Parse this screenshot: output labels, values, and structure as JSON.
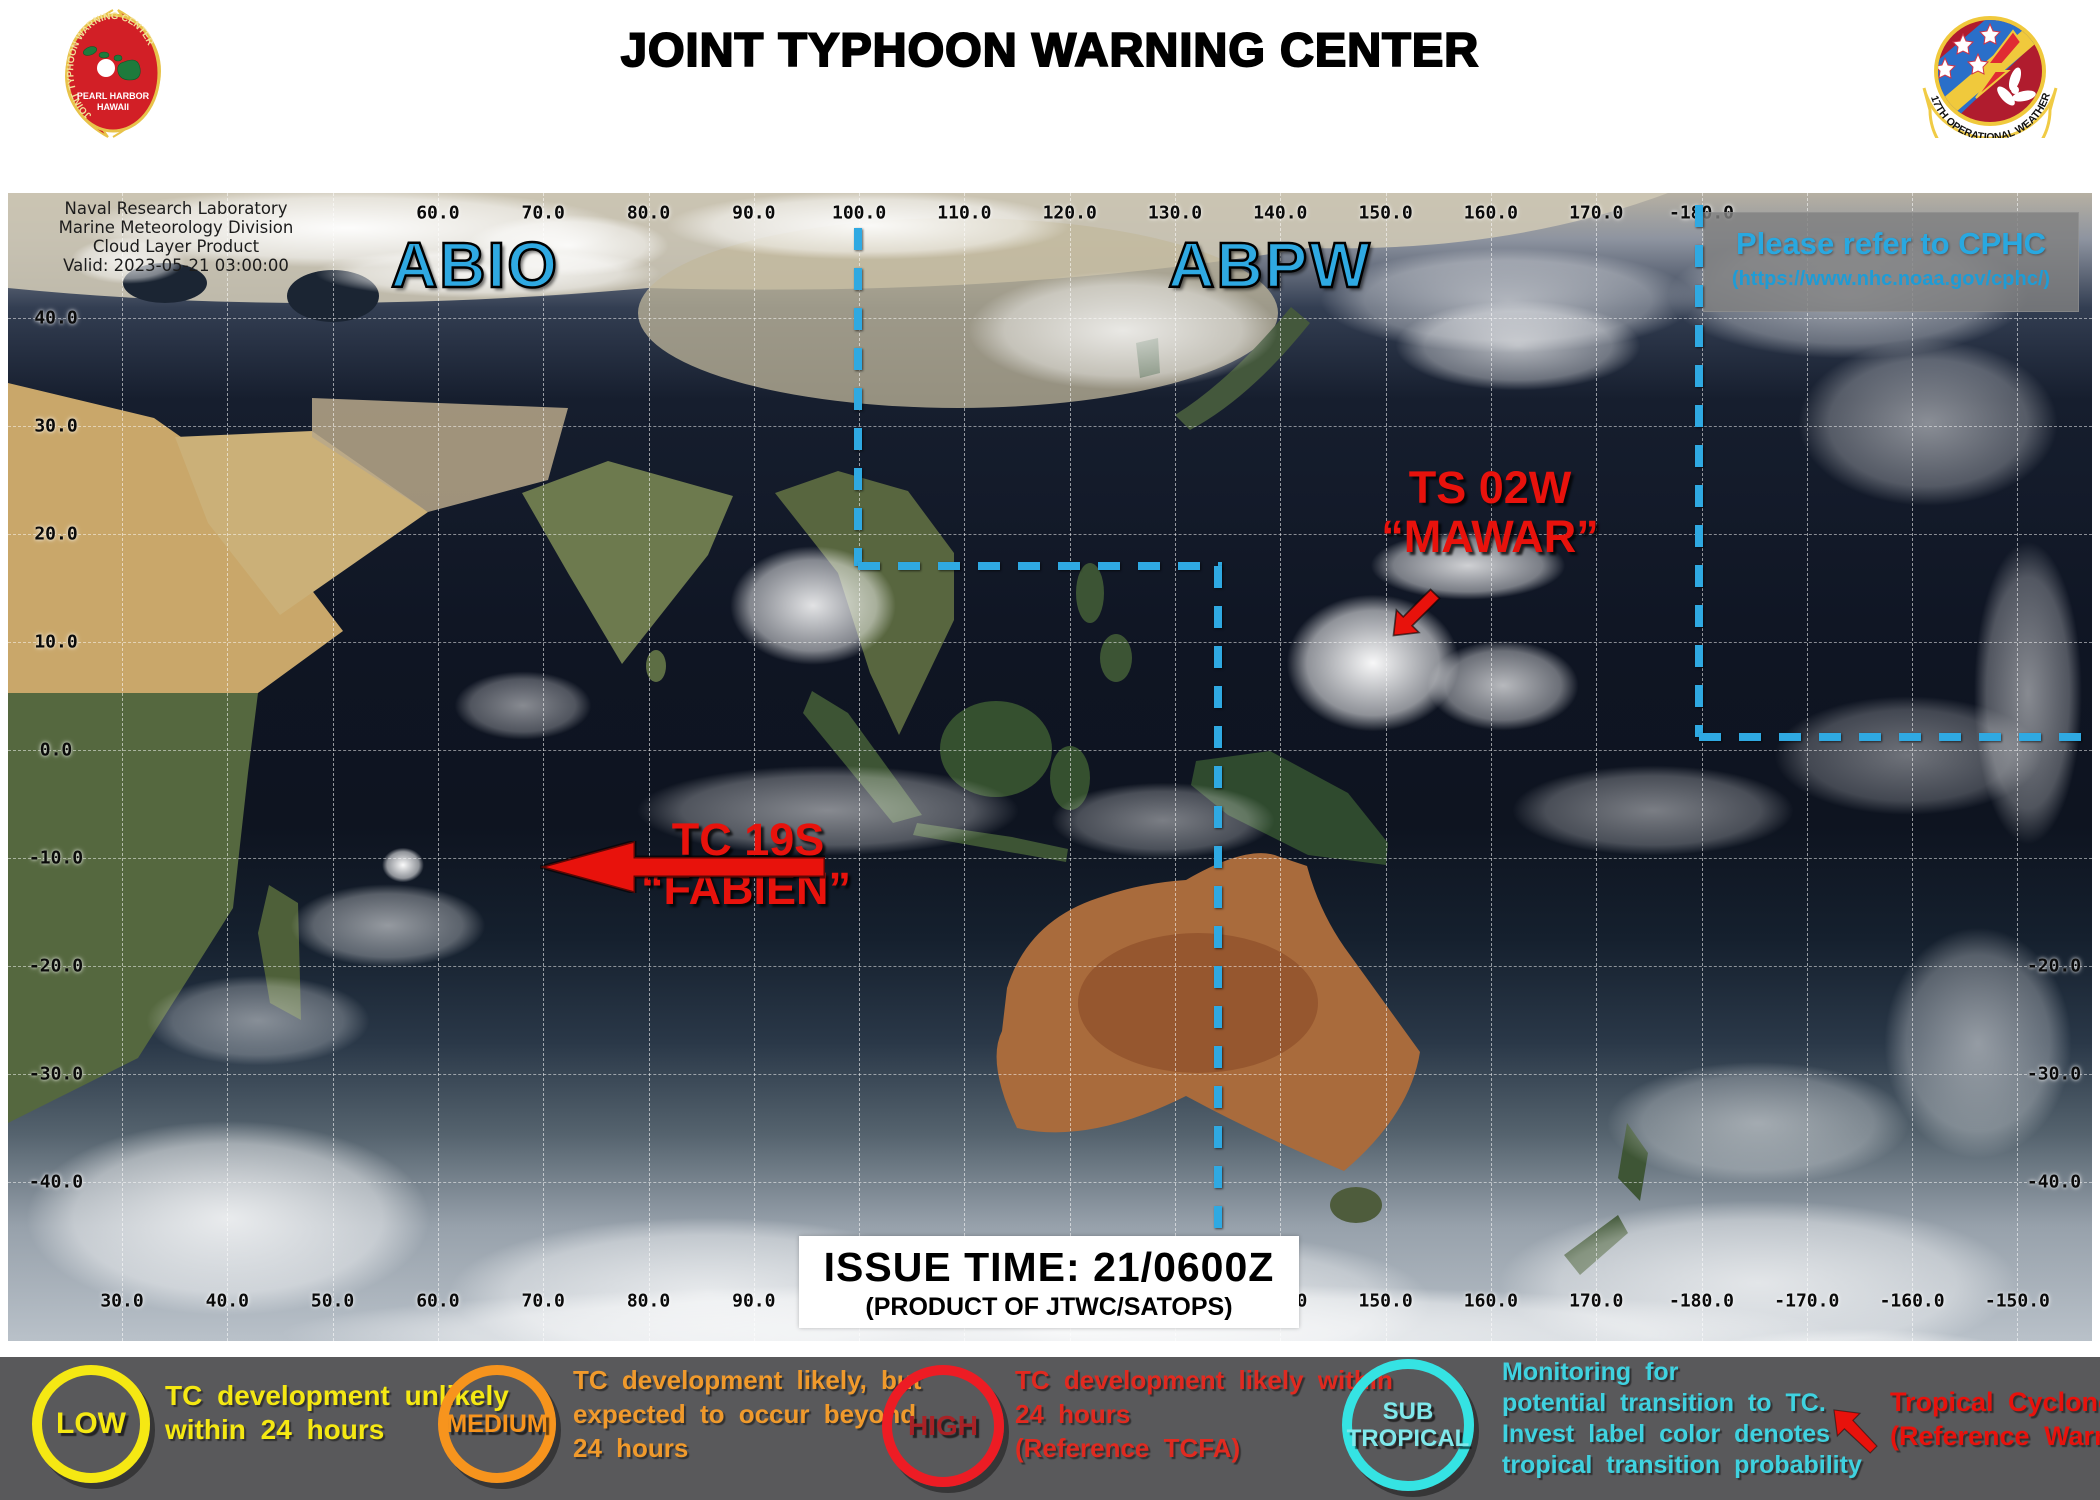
{
  "header": {
    "title": "JOINT TYPHOON WARNING CENTER",
    "left_logo": {
      "ring_text": "JOINT TYPHOON WARNING CENTER",
      "line1": "PEARL HARBOR",
      "line2": "HAWAII"
    },
    "right_logo": {
      "ribbon_text": "17TH OPERATIONAL WEATHER SQ"
    }
  },
  "map": {
    "info_block": {
      "line1": "Naval Research Laboratory",
      "line2": "Marine Meteorology Division",
      "line3": "Cloud Layer Product",
      "line4": "Valid: 2023-05-21 03:00:00"
    },
    "region_labels": {
      "left": "ABIO",
      "right": "ABPW"
    },
    "cphc_notice": {
      "line1": "Please refer to CPHC",
      "line2": "(https://www.nhc.noaa.gov/cphc/)"
    },
    "axes": {
      "lon_values": [
        "30.0",
        "40.0",
        "50.0",
        "60.0",
        "70.0",
        "80.0",
        "90.0",
        "100.0",
        "110.0",
        "120.0",
        "130.0",
        "140.0",
        "150.0",
        "160.0",
        "170.0",
        "-180.0",
        "-170.0",
        "-160.0",
        "-150.0"
      ],
      "top_visible_from": 3,
      "top_visible_to": 15,
      "lat_left": [
        "40.0",
        "30.0",
        "20.0",
        "10.0",
        "0.0",
        "-10.0",
        "-20.0",
        "-30.0",
        "-40.0"
      ],
      "lat_right": [
        "-20.0",
        "-30.0",
        "-40.0"
      ]
    },
    "storms": [
      {
        "id": "TS 02W",
        "name": "“MAWAR”"
      },
      {
        "id": "TC 19S",
        "name": "“FABIEN”"
      }
    ],
    "issue_box": {
      "line1": "ISSUE TIME: 21/0600Z",
      "line2": "(PRODUCT OF JTWC/SATOPS)"
    }
  },
  "legend": {
    "items": [
      {
        "badge": "LOW",
        "badge_line2": "",
        "ring_color": "#f5e813",
        "text_color": "#f5e813",
        "lines": [
          "TC development unlikely",
          "within 24 hours"
        ]
      },
      {
        "badge": "MEDIUM",
        "badge_line2": "",
        "ring_color": "#f7941d",
        "text_color": "#f09a2c",
        "lines": [
          "TC development likely, but",
          "expected to occur beyond",
          "24 hours"
        ]
      },
      {
        "badge": "HIGH",
        "badge_line2": "",
        "ring_color": "#ed1c24",
        "text_color": "#e02a20",
        "lines": [
          "TC development likely within",
          "24 hours",
          "(Reference TCFA)"
        ]
      },
      {
        "badge": "SUB",
        "badge_line2": "TROPICAL",
        "ring_color": "#35e3e3",
        "text_color": "#3fd2e0",
        "lines": [
          "Monitoring for",
          "potential transition to TC.",
          "Invest label color denotes",
          "tropical transition probability"
        ]
      }
    ],
    "cyclone_note": {
      "line1": "Tropical Cyclone",
      "line2": "(Reference Warning)"
    }
  },
  "colors": {
    "accent_blue": "#2fa9e2",
    "storm_red": "#e8120c",
    "legend_background": "#59595b",
    "low_yellow": "#f5e813",
    "medium_orange": "#f7941d",
    "high_red": "#ed1c24",
    "subtropical_cyan": "#35e3e3"
  }
}
